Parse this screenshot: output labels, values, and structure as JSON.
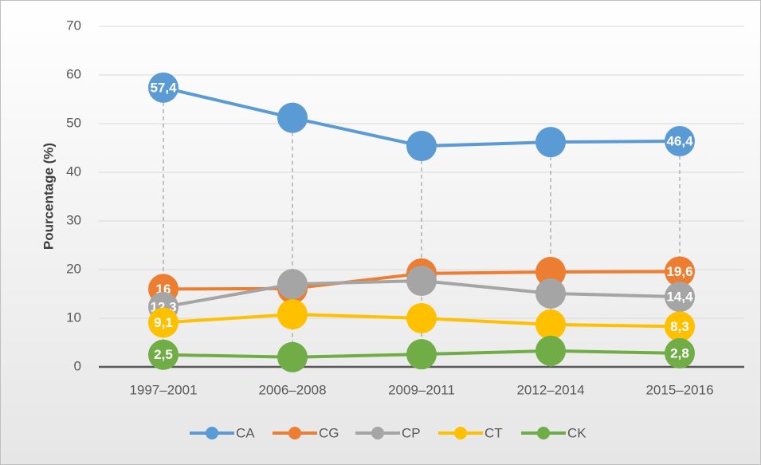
{
  "chart_data": {
    "type": "line",
    "y_label": "Pourcentage (%)",
    "categories": [
      "1997–2001",
      "2006–2008",
      "2009–2011",
      "2012–2014",
      "2015–2016"
    ],
    "series": [
      {
        "name": "CA",
        "color": "#5b9bd5",
        "values": [
          57.4,
          51.2,
          45.4,
          46.2,
          46.4
        ],
        "value_labels": [
          "57,4",
          null,
          null,
          null,
          "46,4"
        ]
      },
      {
        "name": "CG",
        "color": "#ed7d31",
        "values": [
          16,
          16.1,
          19.2,
          19.5,
          19.6
        ],
        "value_labels": [
          "16",
          null,
          null,
          null,
          "19,6"
        ]
      },
      {
        "name": "CP",
        "color": "#a5a5a5",
        "values": [
          12.3,
          17,
          17.7,
          15.1,
          14.4
        ],
        "value_labels": [
          "12,3",
          null,
          null,
          null,
          "14,4"
        ]
      },
      {
        "name": "CT",
        "color": "#ffc000",
        "values": [
          9.1,
          10.8,
          10,
          8.7,
          8.3
        ],
        "value_labels": [
          "9,1",
          null,
          null,
          null,
          "8,3"
        ]
      },
      {
        "name": "CK",
        "color": "#70ad47",
        "values": [
          2.5,
          2,
          2.6,
          3.3,
          2.8
        ],
        "value_labels": [
          "2,5",
          null,
          null,
          null,
          "2,8"
        ]
      }
    ],
    "ylim": [
      0,
      70
    ],
    "yticks": [
      0,
      10,
      20,
      30,
      40,
      50,
      60,
      70
    ],
    "grid": true,
    "legend": "bottom",
    "drop_lines": true
  }
}
